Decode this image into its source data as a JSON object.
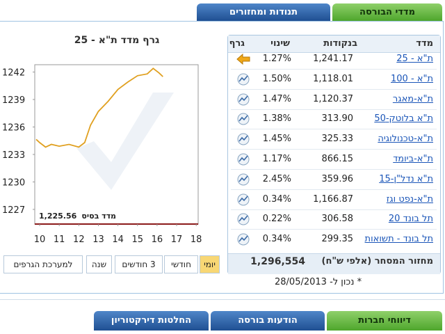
{
  "top_tabs": [
    "מדדי הבורסה",
    "תנודות ומחזורים"
  ],
  "table": {
    "headers": [
      "מדד",
      "בנקודות",
      "שינוי",
      "גרף"
    ],
    "rows": [
      [
        "ת\"א - 25",
        "1,241.17",
        "1.27%"
      ],
      [
        "ת\"א - 100",
        "1,118.01",
        "1.50%"
      ],
      [
        "ת\"א-מאגר",
        "1,120.37",
        "1.47%"
      ],
      [
        "ת\"א בלוטק-50",
        "313.90",
        "1.38%"
      ],
      [
        "ת\"א-טכנולוגיה",
        "325.33",
        "1.45%"
      ],
      [
        "ת\"א-ביומד",
        "866.15",
        "1.17%"
      ],
      [
        "ת\"א נדל\"ן-15",
        "359.96",
        "2.45%"
      ],
      [
        "ת\"א-נפט וגז",
        "1,166.87",
        "0.34%"
      ],
      [
        "תל בונד 20",
        "306.58",
        "0.22%"
      ],
      [
        "תל בונד - תשואות",
        "299.35",
        "0.34%"
      ]
    ],
    "footer": [
      "מחזור המסחר (אלפי ש\"ח)",
      "1,296,554"
    ]
  },
  "note": "* נכון ל- 28/05/2013",
  "chart_data": {
    "type": "line",
    "title": "גרף מדד ת\"א - 25",
    "base_label": "מדד בסיס",
    "base_value": "1,225.56",
    "x": [
      9.82,
      10.0,
      10.3,
      10.6,
      11.0,
      11.5,
      12.0,
      12.3,
      12.6,
      13.0,
      13.5,
      14.0,
      14.5,
      15.0,
      15.5,
      15.8,
      16.1,
      16.3
    ],
    "series": [
      {
        "name": "ת\"א - 25",
        "color": "#e0a020",
        "values": [
          1234.65,
          1234.3,
          1233.8,
          1234.1,
          1233.9,
          1234.1,
          1233.8,
          1234.3,
          1236.2,
          1237.7,
          1238.8,
          1240.1,
          1240.9,
          1241.6,
          1241.8,
          1242.4,
          1241.9,
          1241.5
        ]
      }
    ],
    "xlim": [
      9.75,
      18.1
    ],
    "xticks": [
      10,
      11,
      12,
      13,
      14,
      15,
      16,
      17,
      18
    ],
    "ylim": [
      1225.4,
      1242.8
    ],
    "yticks": [
      1242,
      1239,
      1236,
      1233,
      1230,
      1227
    ]
  },
  "range_buttons": [
    "יומי",
    "חודשי",
    "3 חודשים",
    "שנה",
    "למערכת הגרפים"
  ],
  "bottom_tabs": [
    "דיווחי חברות",
    "הודעות בורסה",
    "החלטות דירקטוריון"
  ]
}
